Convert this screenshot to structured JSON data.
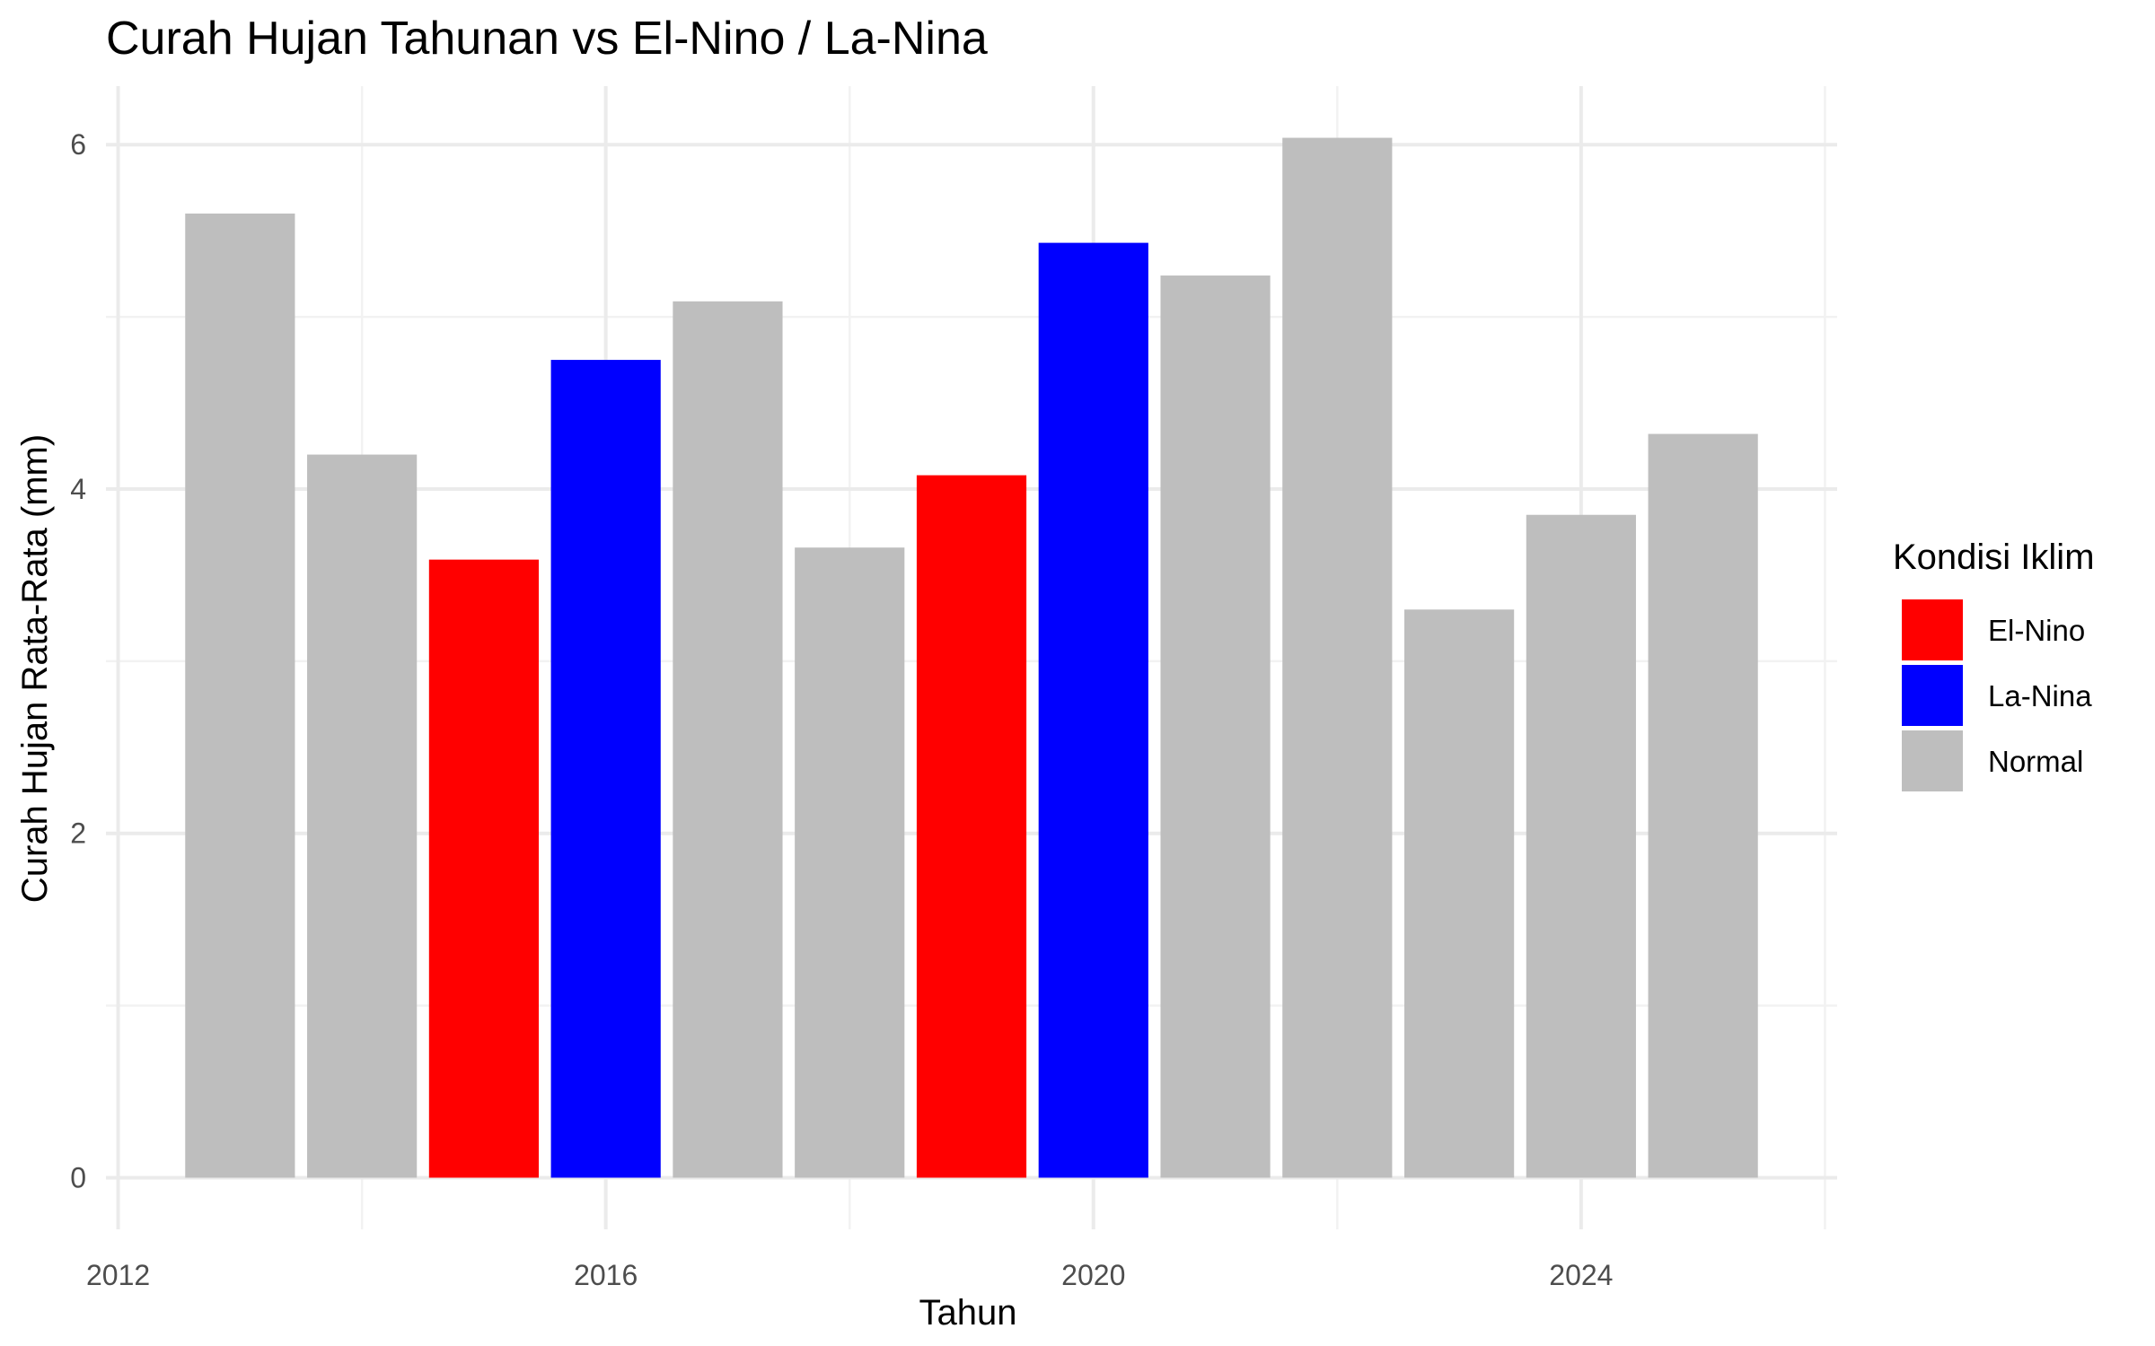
{
  "chart_data": {
    "type": "bar",
    "title": "Curah Hujan Tahunan vs El-Nino / La-Nina",
    "xlabel": "Tahun",
    "ylabel": "Curah Hujan Rata-Rata (mm)",
    "x": [
      2013,
      2014,
      2015,
      2016,
      2017,
      2018,
      2019,
      2020,
      2021,
      2022,
      2023,
      2024,
      2025
    ],
    "values": [
      5.6,
      4.2,
      3.59,
      4.75,
      5.09,
      3.66,
      4.08,
      5.43,
      5.24,
      6.04,
      3.3,
      3.85,
      4.32
    ],
    "condition": [
      "Normal",
      "Normal",
      "El-Nino",
      "La-Nina",
      "Normal",
      "Normal",
      "El-Nino",
      "La-Nina",
      "Normal",
      "Normal",
      "Normal",
      "Normal",
      "Normal"
    ],
    "xlim": [
      2011.9,
      2026.1
    ],
    "ylim": [
      -0.3,
      6.34
    ],
    "x_ticks": [
      2012,
      2016,
      2020,
      2024
    ],
    "y_ticks": [
      0,
      2,
      4,
      6
    ],
    "grid": true,
    "legend": {
      "title": "Kondisi Iklim",
      "placement": "right",
      "entries": [
        {
          "label": "El-Nino",
          "color": "#ff0000"
        },
        {
          "label": "La-Nina",
          "color": "#0000ff"
        },
        {
          "label": "Normal",
          "color": "#bebebe"
        }
      ]
    }
  }
}
